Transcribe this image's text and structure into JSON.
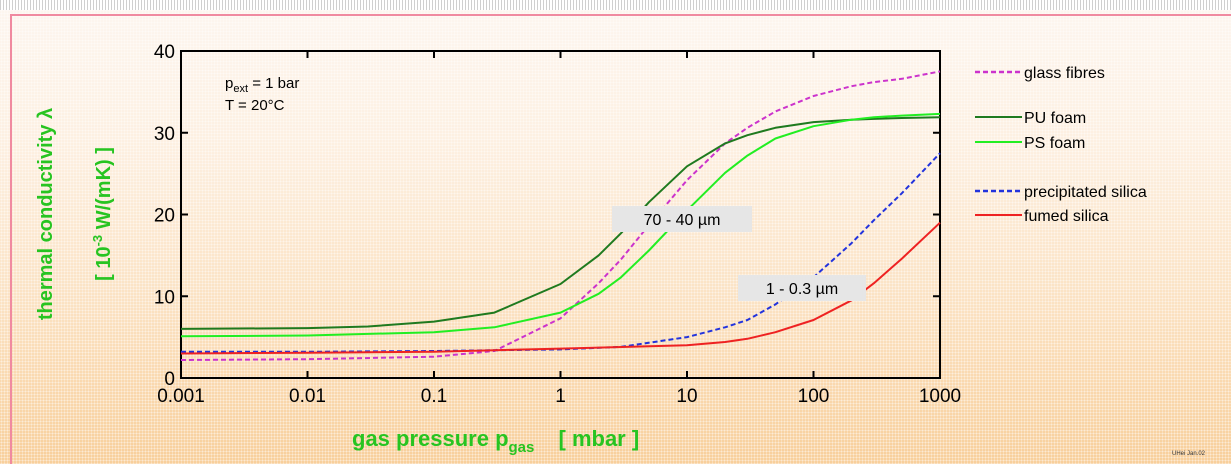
{
  "chart_data": {
    "type": "line",
    "x_scale": "log",
    "xlim": [
      0.001,
      1000
    ],
    "ylim": [
      0,
      40
    ],
    "x_ticks": [
      0.001,
      0.01,
      0.1,
      1,
      10,
      100,
      1000
    ],
    "x_tick_labels": [
      "0.001",
      "0.01",
      "0.1",
      "1",
      "10",
      "100",
      "1000"
    ],
    "y_ticks": [
      0,
      10,
      20,
      30,
      40
    ],
    "y_tick_labels": [
      "0",
      "10",
      "20",
      "30",
      "40"
    ],
    "ylabel_line1": "thermal conductivity λ",
    "ylabel_line2_bracket_open": "[ 10",
    "ylabel_line2_exp": "-3",
    "ylabel_line2_rest": " W/(mK) ]",
    "xlabel_main": "gas pressure p",
    "xlabel_sub": "gas",
    "xlabel_unit": "[ mbar ]",
    "conditions": {
      "line1_main": "p",
      "line1_sub": "ext",
      "line1_rest": " = 1 bar",
      "line2": "T = 20°C"
    },
    "annotations": [
      {
        "text": "70 - 40 µm",
        "x": 10,
        "y": 20
      },
      {
        "text": "1 - 0.3 µm",
        "x": 100,
        "y": 10
      }
    ],
    "series": [
      {
        "name": "glass fibres",
        "color": "#cc33cc",
        "dash": true,
        "x": [
          0.001,
          0.01,
          0.1,
          0.3,
          1,
          2,
          3,
          5,
          10,
          20,
          30,
          50,
          100,
          200,
          300,
          500,
          1000
        ],
        "y": [
          2.2,
          2.3,
          2.6,
          3.3,
          7.3,
          11.6,
          14.5,
          18.7,
          24.2,
          28.7,
          30.6,
          32.6,
          34.5,
          35.7,
          36.2,
          36.6,
          37.5
        ]
      },
      {
        "name": "PU foam",
        "color": "#1f7a1f",
        "dash": false,
        "x": [
          0.001,
          0.01,
          0.03,
          0.1,
          0.3,
          1,
          2,
          3,
          5,
          10,
          20,
          30,
          50,
          100,
          200,
          300,
          500,
          1000
        ],
        "y": [
          6.0,
          6.1,
          6.3,
          6.9,
          8.0,
          11.5,
          15.0,
          17.7,
          21.5,
          25.9,
          28.7,
          29.7,
          30.6,
          31.3,
          31.6,
          31.7,
          31.8,
          31.9
        ]
      },
      {
        "name": "PS foam",
        "color": "#22ee22",
        "dash": false,
        "x": [
          0.001,
          0.01,
          0.1,
          0.3,
          1,
          2,
          3,
          5,
          10,
          20,
          30,
          50,
          100,
          200,
          300,
          500,
          1000
        ],
        "y": [
          5.1,
          5.2,
          5.6,
          6.2,
          8.0,
          10.3,
          12.3,
          15.6,
          20.5,
          25.1,
          27.2,
          29.3,
          30.8,
          31.6,
          31.9,
          32.1,
          32.3
        ]
      },
      {
        "name": "precipitated silica",
        "color": "#2233dd",
        "dash": true,
        "x": [
          0.001,
          0.01,
          0.1,
          1,
          3,
          10,
          20,
          30,
          50,
          100,
          200,
          300,
          500,
          1000
        ],
        "y": [
          3.2,
          3.2,
          3.3,
          3.5,
          3.8,
          5.0,
          6.2,
          7.1,
          9.0,
          12.3,
          16.5,
          19.3,
          22.6,
          27.5
        ]
      },
      {
        "name": "fumed silica",
        "color": "#ee2222",
        "dash": false,
        "x": [
          0.001,
          0.01,
          0.1,
          1,
          10,
          20,
          30,
          50,
          100,
          200,
          300,
          500,
          1000
        ],
        "y": [
          3.0,
          3.1,
          3.2,
          3.6,
          4.0,
          4.4,
          4.8,
          5.6,
          7.1,
          9.5,
          11.6,
          14.6,
          19.0
        ]
      }
    ],
    "legend_position": "right",
    "grid": false
  },
  "footer_text": "UHei Jan.02"
}
